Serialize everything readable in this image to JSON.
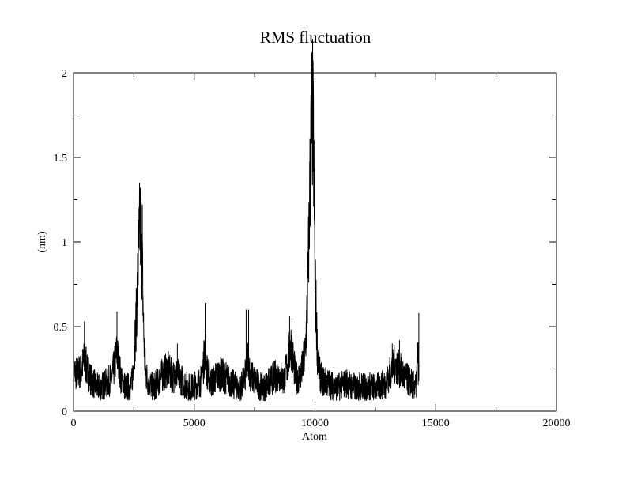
{
  "chart_data": {
    "type": "line",
    "title": "RMS fluctuation",
    "xlabel": "Atom",
    "ylabel": "(nm)",
    "xlim": [
      0,
      20000
    ],
    "ylim": [
      0,
      2
    ],
    "x_ticks": [
      0,
      5000,
      10000,
      15000,
      20000
    ],
    "x_tick_labels": [
      "0",
      "5000",
      "10000",
      "15000",
      "20000"
    ],
    "y_ticks": [
      0,
      0.5,
      1,
      1.5,
      2
    ],
    "y_tick_labels": [
      "0",
      "0.5",
      "1",
      "1.5",
      "2"
    ],
    "grid": false,
    "series_color": "#000000",
    "series": [
      {
        "x": [
          0,
          150,
          300,
          450,
          500,
          600,
          800,
          1000,
          1200,
          1400,
          1600,
          1800,
          1900,
          2000,
          2200,
          2400,
          2500,
          2600,
          2700,
          2750,
          2800,
          2850,
          2900,
          2950,
          3000,
          3100,
          3300,
          3500,
          3700,
          3900,
          4100,
          4300,
          4500,
          4700,
          4900,
          5100,
          5300,
          5400,
          5450,
          5500,
          5700,
          5900,
          6100,
          6300,
          6500,
          6700,
          6900,
          7100,
          7200,
          7250,
          7300,
          7500,
          7700,
          7900,
          8100,
          8300,
          8500,
          8700,
          8900,
          9000,
          9100,
          9200,
          9400,
          9600,
          9700,
          9800,
          9850,
          9900,
          9950,
          10000,
          10100,
          10200,
          10300,
          10500,
          10700,
          10900,
          11100,
          11300,
          11500,
          11700,
          11900,
          12100,
          12300,
          12500,
          12700,
          12900,
          13100,
          13300,
          13500,
          13700,
          13900,
          14100,
          14200,
          14250,
          14300
        ],
        "y": [
          0.24,
          0.22,
          0.24,
          0.3,
          0.28,
          0.22,
          0.17,
          0.14,
          0.15,
          0.17,
          0.2,
          0.35,
          0.25,
          0.17,
          0.14,
          0.15,
          0.3,
          0.55,
          0.95,
          1.1,
          1.05,
          0.85,
          0.5,
          0.3,
          0.22,
          0.17,
          0.14,
          0.17,
          0.22,
          0.25,
          0.2,
          0.22,
          0.18,
          0.15,
          0.14,
          0.16,
          0.18,
          0.3,
          0.4,
          0.25,
          0.17,
          0.2,
          0.22,
          0.2,
          0.17,
          0.15,
          0.13,
          0.2,
          0.3,
          0.32,
          0.22,
          0.18,
          0.15,
          0.14,
          0.17,
          0.2,
          0.22,
          0.18,
          0.3,
          0.4,
          0.3,
          0.2,
          0.2,
          0.35,
          0.7,
          1.4,
          1.7,
          1.75,
          1.5,
          0.8,
          0.35,
          0.22,
          0.18,
          0.17,
          0.15,
          0.14,
          0.15,
          0.17,
          0.15,
          0.14,
          0.15,
          0.14,
          0.15,
          0.14,
          0.15,
          0.16,
          0.22,
          0.28,
          0.25,
          0.2,
          0.18,
          0.15,
          0.15,
          0.35,
          0.2
        ]
      }
    ],
    "spikes": [
      [
        450,
        0.53
      ],
      [
        1800,
        0.59
      ],
      [
        2750,
        1.28
      ],
      [
        2850,
        1.22
      ],
      [
        4300,
        0.4
      ],
      [
        5450,
        0.64
      ],
      [
        7150,
        0.6
      ],
      [
        7250,
        0.6
      ],
      [
        8950,
        0.56
      ],
      [
        9050,
        0.55
      ],
      [
        9900,
        1.96
      ],
      [
        13200,
        0.4
      ],
      [
        13500,
        0.42
      ],
      [
        14300,
        0.58
      ]
    ]
  }
}
